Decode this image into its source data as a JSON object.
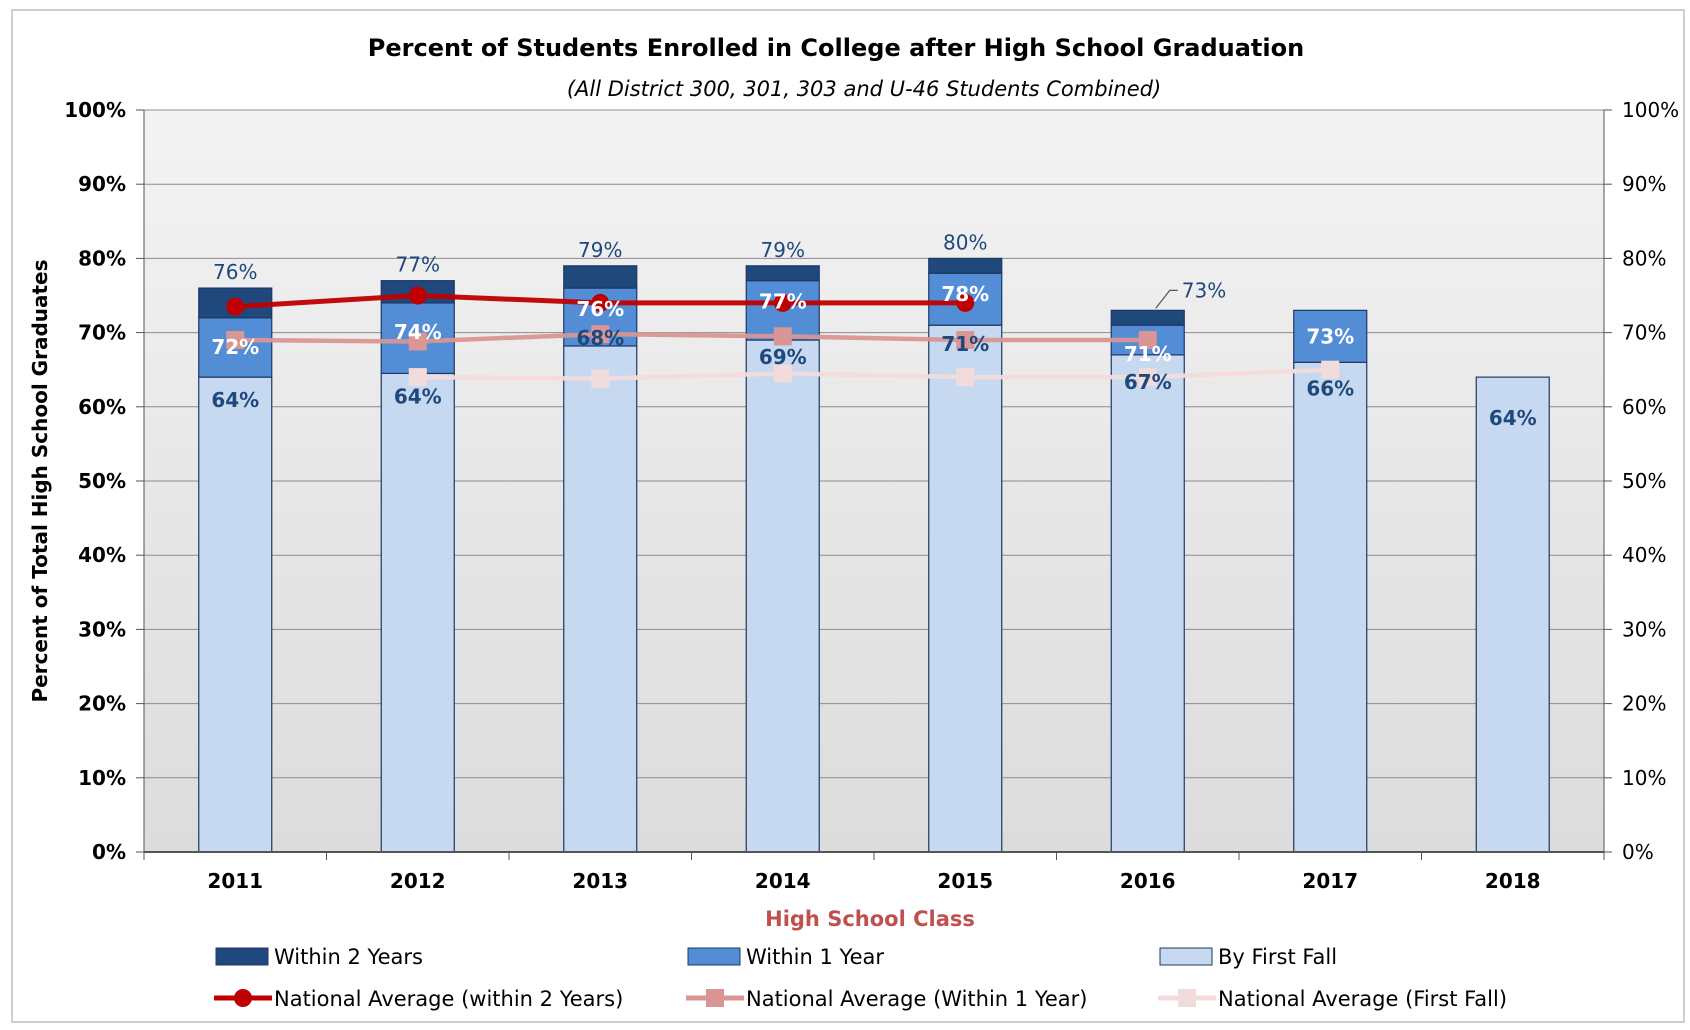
{
  "chart_data": {
    "type": "bar",
    "title": "Percent of Students Enrolled in College after High School Graduation",
    "subtitle": "(All District 300, 301, 303 and U-46 Students Combined)",
    "xlabel": "High School Class",
    "ylabel": "Percent of Total High School Graduates",
    "ylim": [
      0,
      100
    ],
    "yticks": [
      "0%",
      "10%",
      "20%",
      "30%",
      "40%",
      "50%",
      "60%",
      "70%",
      "80%",
      "90%",
      "100%"
    ],
    "categories": [
      "2011",
      "2012",
      "2013",
      "2014",
      "2015",
      "2016",
      "2017",
      "2018"
    ],
    "stacked_series": [
      {
        "name": "By First Fall",
        "color": "#c6d9f1",
        "values": [
          64,
          64.5,
          68.2,
          69,
          71,
          67,
          66,
          64
        ],
        "labels": [
          "64%",
          "64%",
          "68%",
          "69%",
          "71%",
          "67%",
          "66%",
          "64%"
        ]
      },
      {
        "name": "Within 1 Year",
        "color": "#538dd5",
        "values": [
          72,
          74,
          76,
          77,
          78,
          71,
          73,
          null
        ],
        "labels": [
          "72%",
          "74%",
          "76%",
          "77%",
          "78%",
          "71%",
          "73%",
          null
        ]
      },
      {
        "name": "Within 2 Years",
        "color": "#1f497d",
        "values": [
          76,
          77,
          79,
          79,
          80,
          73,
          null,
          null
        ],
        "labels": [
          "76%",
          "77%",
          "79%",
          "79%",
          "80%",
          "73%",
          null,
          null
        ]
      }
    ],
    "line_series": [
      {
        "name": "National Average (within 2 Years)",
        "color": "#c00000",
        "marker": "circle",
        "values": [
          73.5,
          75,
          74,
          74,
          74,
          null,
          null,
          null
        ]
      },
      {
        "name": "National Average (Within 1 Year)",
        "color": "#d99694",
        "marker": "square",
        "values": [
          69,
          68.8,
          69.8,
          69.5,
          69,
          69,
          null,
          null
        ]
      },
      {
        "name": "National Average (First Fall)",
        "color": "#f2dcdb",
        "marker": "square",
        "values": [
          null,
          64,
          63.8,
          64.5,
          64,
          64,
          65,
          null
        ]
      }
    ],
    "legend": {
      "position": "bottom",
      "items": [
        {
          "label": "Within 2 Years",
          "kind": "bar",
          "color": "#1f497d"
        },
        {
          "label": "Within 1 Year",
          "kind": "bar",
          "color": "#538dd5"
        },
        {
          "label": "By First Fall",
          "kind": "bar",
          "color": "#c6d9f1"
        },
        {
          "label": "National Average (within 2 Years)",
          "kind": "line",
          "marker": "circle",
          "color": "#c00000"
        },
        {
          "label": "National Average (Within 1 Year)",
          "kind": "line",
          "marker": "square",
          "color": "#d99694"
        },
        {
          "label": "National Average (First Fall)",
          "kind": "line",
          "marker": "square",
          "color": "#f2dcdb"
        }
      ]
    },
    "grid": true,
    "secondary_y_axis": true
  }
}
